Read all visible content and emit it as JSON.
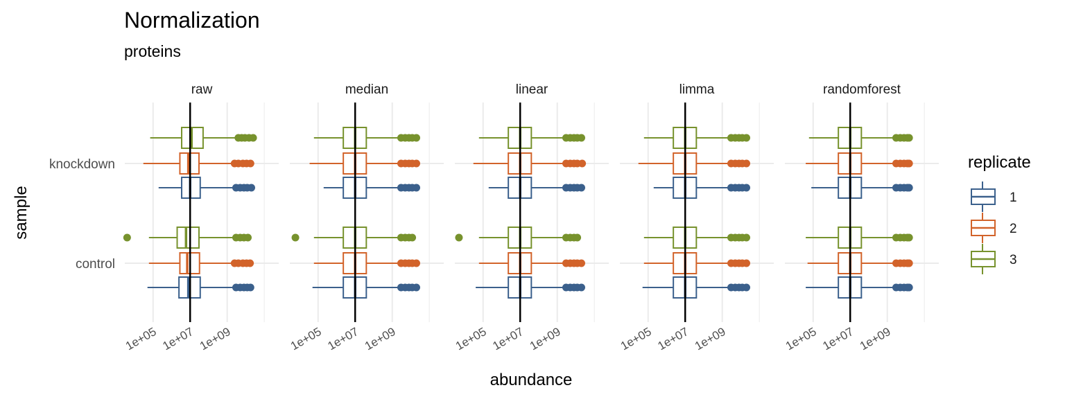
{
  "chart_data": {
    "type": "boxplot",
    "title": "Normalization",
    "subtitle": "proteins",
    "xlabel": "abundance",
    "ylabel": "sample",
    "x_scale": "log10",
    "xlim": [
      3000,
      600000000000
    ],
    "x_ticks": [
      100000,
      10000000,
      1000000000
    ],
    "x_tick_labels": [
      "1e+05",
      "1e+07",
      "1e+09"
    ],
    "reference_line_x": 10000000,
    "grid": true,
    "legend": {
      "title": "replicate",
      "position": "right",
      "entries": [
        {
          "label": "1",
          "color": "#3b608c"
        },
        {
          "label": "2",
          "color": "#d2632a"
        },
        {
          "label": "3",
          "color": "#77922d"
        }
      ]
    },
    "categories": [
      "control",
      "knockdown"
    ],
    "panels": [
      {
        "name": "raw",
        "groups": {
          "knockdown": [
            {
              "replicate": "1",
              "whisker_low": 200000,
              "q1": 3500000,
              "median": 10000000,
              "q3": 35000000,
              "whisker_high": 2500000000,
              "outliers": [
                3000000000,
                5000000000,
                8000000000,
                12000000000,
                20000000000
              ]
            },
            {
              "replicate": "2",
              "whisker_low": 30000,
              "q1": 2800000,
              "median": 8000000,
              "q3": 30000000,
              "whisker_high": 2000000000,
              "outliers": [
                2500000000,
                4000000000,
                7000000000,
                11000000000,
                18000000000
              ]
            },
            {
              "replicate": "3",
              "whisker_low": 70000,
              "q1": 3500000,
              "median": 12000000,
              "q3": 50000000,
              "whisker_high": 3000000000,
              "outliers": [
                4000000000,
                6000000000,
                9000000000,
                15000000000,
                25000000000
              ]
            }
          ],
          "control": [
            {
              "replicate": "1",
              "whisker_low": 50000,
              "q1": 2500000,
              "median": 8000000,
              "q3": 35000000,
              "whisker_high": 2500000000,
              "outliers": [
                3000000000,
                5000000000,
                8000000000,
                12000000000,
                18000000000
              ]
            },
            {
              "replicate": "2",
              "whisker_low": 60000,
              "q1": 2800000,
              "median": 7000000,
              "q3": 32000000,
              "whisker_high": 2000000000,
              "outliers": [
                2500000000,
                4000000000,
                7000000000,
                11000000000,
                17000000000
              ]
            },
            {
              "replicate": "3",
              "whisker_low": 60000,
              "q1": 2000000,
              "median": 6000000,
              "q3": 30000000,
              "whisker_high": 2200000000,
              "outliers": [
                4000,
                3000000000,
                5000000000,
                8000000000,
                13000000000
              ]
            }
          ]
        }
      },
      {
        "name": "median",
        "groups": {
          "knockdown": [
            {
              "replicate": "1",
              "whisker_low": 200000,
              "q1": 2300000,
              "median": 10000000,
              "q3": 40000000,
              "whisker_high": 2500000000,
              "outliers": [
                3000000000,
                5000000000,
                8000000000,
                12000000000,
                20000000000
              ]
            },
            {
              "replicate": "2",
              "whisker_low": 35000,
              "q1": 2300000,
              "median": 10000000,
              "q3": 40000000,
              "whisker_high": 2500000000,
              "outliers": [
                3000000000,
                5000000000,
                8000000000,
                12000000000,
                20000000000
              ]
            },
            {
              "replicate": "3",
              "whisker_low": 60000,
              "q1": 2300000,
              "median": 10000000,
              "q3": 40000000,
              "whisker_high": 2500000000,
              "outliers": [
                3000000000,
                5000000000,
                8000000000,
                12000000000,
                20000000000
              ]
            }
          ],
          "control": [
            {
              "replicate": "1",
              "whisker_low": 50000,
              "q1": 2300000,
              "median": 10000000,
              "q3": 40000000,
              "whisker_high": 2500000000,
              "outliers": [
                3000000000,
                5000000000,
                8000000000,
                12000000000,
                20000000000
              ]
            },
            {
              "replicate": "2",
              "whisker_low": 60000,
              "q1": 2300000,
              "median": 10000000,
              "q3": 40000000,
              "whisker_high": 2500000000,
              "outliers": [
                3000000000,
                5000000000,
                8000000000,
                12000000000,
                20000000000
              ]
            },
            {
              "replicate": "3",
              "whisker_low": 60000,
              "q1": 2300000,
              "median": 10000000,
              "q3": 40000000,
              "whisker_high": 2500000000,
              "outliers": [
                6000,
                3000000000,
                5000000000,
                8000000000,
                12000000000
              ]
            }
          ]
        }
      },
      {
        "name": "linear",
        "groups": {
          "knockdown": [
            {
              "replicate": "1",
              "whisker_low": 200000,
              "q1": 2300000,
              "median": 10000000,
              "q3": 40000000,
              "whisker_high": 2500000000,
              "outliers": [
                3000000000,
                5000000000,
                8000000000,
                12000000000,
                20000000000
              ]
            },
            {
              "replicate": "2",
              "whisker_low": 30000,
              "q1": 2300000,
              "median": 10000000,
              "q3": 40000000,
              "whisker_high": 2500000000,
              "outliers": [
                3000000000,
                5000000000,
                8000000000,
                12000000000,
                22000000000
              ]
            },
            {
              "replicate": "3",
              "whisker_low": 60000,
              "q1": 2300000,
              "median": 10000000,
              "q3": 40000000,
              "whisker_high": 2500000000,
              "outliers": [
                3000000000,
                5000000000,
                8000000000,
                12000000000,
                20000000000
              ]
            }
          ],
          "control": [
            {
              "replicate": "1",
              "whisker_low": 40000,
              "q1": 2300000,
              "median": 10000000,
              "q3": 40000000,
              "whisker_high": 2500000000,
              "outliers": [
                3000000000,
                5000000000,
                8000000000,
                12000000000,
                20000000000
              ]
            },
            {
              "replicate": "2",
              "whisker_low": 60000,
              "q1": 2300000,
              "median": 10000000,
              "q3": 40000000,
              "whisker_high": 2500000000,
              "outliers": [
                3000000000,
                5000000000,
                8000000000,
                12000000000,
                20000000000
              ]
            },
            {
              "replicate": "3",
              "whisker_low": 60000,
              "q1": 2300000,
              "median": 10000000,
              "q3": 40000000,
              "whisker_high": 2500000000,
              "outliers": [
                5000,
                3000000000,
                5000000000,
                8000000000,
                12000000000
              ]
            }
          ]
        }
      },
      {
        "name": "limma",
        "groups": {
          "knockdown": [
            {
              "replicate": "1",
              "whisker_low": 200000,
              "q1": 2300000,
              "median": 10000000,
              "q3": 40000000,
              "whisker_high": 2500000000,
              "outliers": [
                3000000000,
                5000000000,
                8000000000,
                12000000000,
                20000000000
              ]
            },
            {
              "replicate": "2",
              "whisker_low": 30000,
              "q1": 2300000,
              "median": 10000000,
              "q3": 40000000,
              "whisker_high": 2500000000,
              "outliers": [
                3000000000,
                5000000000,
                8000000000,
                12000000000,
                20000000000
              ]
            },
            {
              "replicate": "3",
              "whisker_low": 60000,
              "q1": 2300000,
              "median": 10000000,
              "q3": 40000000,
              "whisker_high": 2500000000,
              "outliers": [
                3000000000,
                5000000000,
                8000000000,
                12000000000,
                20000000000
              ]
            }
          ],
          "control": [
            {
              "replicate": "1",
              "whisker_low": 50000,
              "q1": 2300000,
              "median": 10000000,
              "q3": 40000000,
              "whisker_high": 2500000000,
              "outliers": [
                3000000000,
                5000000000,
                8000000000,
                12000000000,
                20000000000
              ]
            },
            {
              "replicate": "2",
              "whisker_low": 60000,
              "q1": 2300000,
              "median": 10000000,
              "q3": 40000000,
              "whisker_high": 2500000000,
              "outliers": [
                3000000000,
                5000000000,
                8000000000,
                12000000000,
                20000000000
              ]
            },
            {
              "replicate": "3",
              "whisker_low": 60000,
              "q1": 2300000,
              "median": 10000000,
              "q3": 40000000,
              "whisker_high": 2500000000,
              "outliers": [
                3000000000,
                5000000000,
                8000000000,
                12000000000,
                20000000000
              ]
            }
          ]
        }
      },
      {
        "name": "randomforest",
        "groups": {
          "knockdown": [
            {
              "replicate": "1",
              "whisker_low": 80000,
              "q1": 2300000,
              "median": 10000000,
              "q3": 40000000,
              "whisker_high": 2500000000,
              "outliers": [
                3000000000,
                5000000000,
                8000000000,
                12000000000,
                15000000000
              ]
            },
            {
              "replicate": "2",
              "whisker_low": 40000,
              "q1": 2300000,
              "median": 10000000,
              "q3": 40000000,
              "whisker_high": 2500000000,
              "outliers": [
                3000000000,
                5000000000,
                8000000000,
                12000000000,
                15000000000
              ]
            },
            {
              "replicate": "3",
              "whisker_low": 60000,
              "q1": 2300000,
              "median": 10000000,
              "q3": 40000000,
              "whisker_high": 2500000000,
              "outliers": [
                3000000000,
                5000000000,
                8000000000,
                12000000000,
                15000000000
              ]
            }
          ],
          "control": [
            {
              "replicate": "1",
              "whisker_low": 40000,
              "q1": 2300000,
              "median": 10000000,
              "q3": 40000000,
              "whisker_high": 2500000000,
              "outliers": [
                3000000000,
                5000000000,
                8000000000,
                12000000000,
                15000000000
              ]
            },
            {
              "replicate": "2",
              "whisker_low": 50000,
              "q1": 2300000,
              "median": 10000000,
              "q3": 40000000,
              "whisker_high": 2500000000,
              "outliers": [
                3000000000,
                5000000000,
                8000000000,
                12000000000,
                15000000000
              ]
            },
            {
              "replicate": "3",
              "whisker_low": 40000,
              "q1": 2300000,
              "median": 10000000,
              "q3": 40000000,
              "whisker_high": 2500000000,
              "outliers": [
                3000000000,
                5000000000,
                8000000000,
                12000000000,
                15000000000
              ]
            }
          ]
        }
      }
    ]
  }
}
